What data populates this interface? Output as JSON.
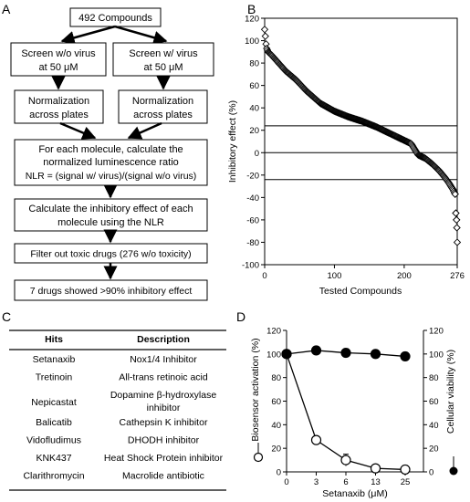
{
  "panel_labels": {
    "a": "A",
    "b": "B",
    "c": "C",
    "d": "D"
  },
  "flowchart": {
    "start": "492 Compounds",
    "screen_left": [
      "Screen w/o virus",
      "at 50 μM"
    ],
    "screen_right": [
      "Screen w/ virus",
      "at 50 μM"
    ],
    "norm_left": [
      "Normalization",
      "across plates"
    ],
    "norm_right": [
      "Normalization",
      "across plates"
    ],
    "nlr": [
      "For each molecule, calculate the",
      "normalized luminescence ratio",
      "NLR = (signal w/ virus)/(signal w/o virus)"
    ],
    "inhibit": [
      "Calculate the inhibitory effect of each",
      "molecule using the NLR"
    ],
    "filter": "Filter out toxic drugs (276 w/o toxicity)",
    "result": "7 drugs showed >90% inhibitory effect"
  },
  "table": {
    "headers": [
      "Hits",
      "Description"
    ],
    "rows": [
      {
        "hit": "Setanaxib",
        "desc": [
          "Nox1/4 Inhibitor"
        ]
      },
      {
        "hit": "Tretinoin",
        "desc": [
          "All-trans retinoic acid"
        ]
      },
      {
        "hit": "Nepicastat",
        "desc": [
          "Dopamine β-hydroxylase",
          "inhibitor"
        ]
      },
      {
        "hit": "Balicatib",
        "desc": [
          "Cathepsin K inhibitor"
        ]
      },
      {
        "hit": "Vidofludimus",
        "desc": [
          "DHODH inhibitor"
        ]
      },
      {
        "hit": "KNK437",
        "desc": [
          "Heat Shock Protein inhibitor"
        ]
      },
      {
        "hit": "Clarithromycin",
        "desc": [
          "Macrolide antibiotic"
        ]
      }
    ]
  },
  "chart_data": [
    {
      "type": "scatter",
      "panel": "B",
      "xlabel": "Tested Compounds",
      "ylabel": "Inhibitory effect (%)",
      "xlim": [
        0,
        276
      ],
      "ylim": [
        -100,
        120
      ],
      "xticks": [
        "0",
        "100",
        "200",
        "276"
      ],
      "yticks": [
        "120",
        "100",
        "80",
        "60",
        "40",
        "20",
        "0",
        "-20",
        "-40",
        "-60",
        "-80",
        "-100"
      ],
      "reference_lines": [
        24,
        0,
        -24
      ],
      "anchors": [
        [
          0,
          110
        ],
        [
          1,
          104
        ],
        [
          2,
          97
        ],
        [
          3,
          93
        ],
        [
          5,
          90
        ],
        [
          10,
          87
        ],
        [
          20,
          80
        ],
        [
          30,
          73
        ],
        [
          45,
          65
        ],
        [
          60,
          55
        ],
        [
          80,
          44
        ],
        [
          100,
          37
        ],
        [
          120,
          32
        ],
        [
          140,
          28
        ],
        [
          160,
          23
        ],
        [
          180,
          17
        ],
        [
          200,
          11
        ],
        [
          210,
          8
        ],
        [
          215,
          3
        ],
        [
          220,
          -2
        ],
        [
          230,
          -5
        ],
        [
          240,
          -10
        ],
        [
          250,
          -16
        ],
        [
          258,
          -22
        ],
        [
          264,
          -27
        ],
        [
          270,
          -33
        ],
        [
          273,
          -37
        ],
        [
          274,
          -54
        ],
        [
          275,
          -60
        ],
        [
          275.5,
          -67
        ],
        [
          276,
          -80
        ]
      ],
      "n_points": 276,
      "marker": "open-diamond"
    },
    {
      "type": "line",
      "panel": "D",
      "xlabel": "Setanaxib (μM)",
      "ylabel_left": "Biosensor activation (%)",
      "ylabel_right": "Cellular viability (%)",
      "categories": [
        "0",
        "3",
        "6",
        "13",
        "25"
      ],
      "ylim": [
        0,
        120
      ],
      "yticks": [
        "0",
        "20",
        "40",
        "60",
        "80",
        "100",
        "120"
      ],
      "series": [
        {
          "name": "Biosensor activation (%)",
          "marker": "open-circle",
          "values": [
            100,
            27,
            10,
            3,
            2
          ],
          "errors": [
            0,
            2,
            5,
            1,
            1
          ]
        },
        {
          "name": "Cellular viability (%)",
          "marker": "filled-circle",
          "values": [
            100,
            103,
            101,
            100,
            98
          ]
        }
      ]
    }
  ]
}
